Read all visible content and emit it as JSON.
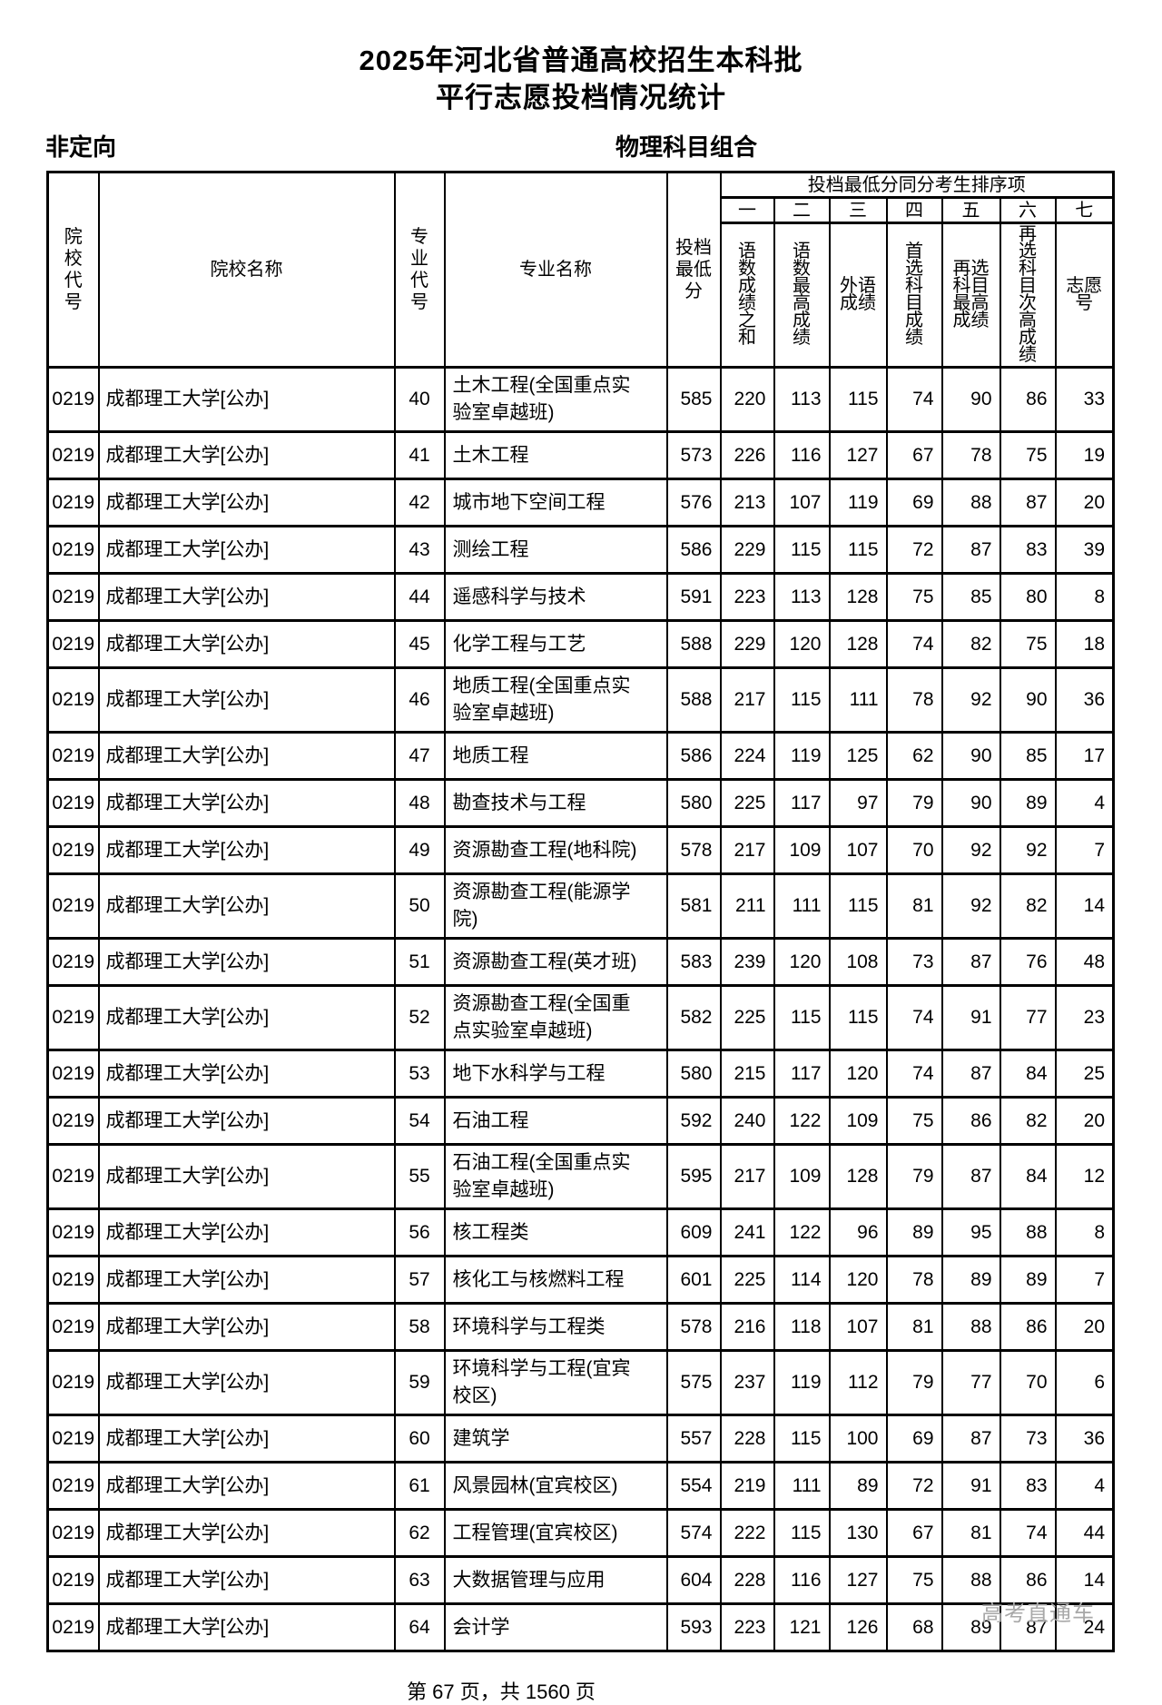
{
  "title": {
    "line1": "2025年河北省普通高校招生本科批",
    "line2": "平行志愿投档情况统计"
  },
  "labels": {
    "left": "非定向",
    "right": "物理科目组合"
  },
  "table": {
    "columns": {
      "school_code": "院校代号",
      "school_name": "院校名称",
      "major_code": "专业代号",
      "major_name": "专业名称",
      "min_score": "投档最低分",
      "tiebreak_group": "投档最低分同分考生排序项",
      "tiebreak_order": [
        "一",
        "二",
        "三",
        "四",
        "五",
        "六",
        "七"
      ],
      "tiebreak_labels": [
        "语数成绩之和",
        "语数最高成绩",
        "外语成绩",
        "首选科目成绩",
        "再选科目最高成绩",
        "再选科目次高成绩",
        "志愿号"
      ]
    },
    "rows": [
      {
        "school_code": "0219",
        "school_name": "成都理工大学[公办]",
        "major_code": "40",
        "major_name": "土木工程(全国重点实验室卓越班)",
        "min_score": "585",
        "tiebreak": [
          "220",
          "113",
          "115",
          "74",
          "90",
          "86",
          "33"
        ]
      },
      {
        "school_code": "0219",
        "school_name": "成都理工大学[公办]",
        "major_code": "41",
        "major_name": "土木工程",
        "min_score": "573",
        "tiebreak": [
          "226",
          "116",
          "127",
          "67",
          "78",
          "75",
          "19"
        ]
      },
      {
        "school_code": "0219",
        "school_name": "成都理工大学[公办]",
        "major_code": "42",
        "major_name": "城市地下空间工程",
        "min_score": "576",
        "tiebreak": [
          "213",
          "107",
          "119",
          "69",
          "88",
          "87",
          "20"
        ]
      },
      {
        "school_code": "0219",
        "school_name": "成都理工大学[公办]",
        "major_code": "43",
        "major_name": "测绘工程",
        "min_score": "586",
        "tiebreak": [
          "229",
          "115",
          "115",
          "72",
          "87",
          "83",
          "39"
        ]
      },
      {
        "school_code": "0219",
        "school_name": "成都理工大学[公办]",
        "major_code": "44",
        "major_name": "遥感科学与技术",
        "min_score": "591",
        "tiebreak": [
          "223",
          "113",
          "128",
          "75",
          "85",
          "80",
          "8"
        ]
      },
      {
        "school_code": "0219",
        "school_name": "成都理工大学[公办]",
        "major_code": "45",
        "major_name": "化学工程与工艺",
        "min_score": "588",
        "tiebreak": [
          "229",
          "120",
          "128",
          "74",
          "82",
          "75",
          "18"
        ]
      },
      {
        "school_code": "0219",
        "school_name": "成都理工大学[公办]",
        "major_code": "46",
        "major_name": "地质工程(全国重点实验室卓越班)",
        "min_score": "588",
        "tiebreak": [
          "217",
          "115",
          "111",
          "78",
          "92",
          "90",
          "36"
        ]
      },
      {
        "school_code": "0219",
        "school_name": "成都理工大学[公办]",
        "major_code": "47",
        "major_name": "地质工程",
        "min_score": "586",
        "tiebreak": [
          "224",
          "119",
          "125",
          "62",
          "90",
          "85",
          "17"
        ]
      },
      {
        "school_code": "0219",
        "school_name": "成都理工大学[公办]",
        "major_code": "48",
        "major_name": "勘查技术与工程",
        "min_score": "580",
        "tiebreak": [
          "225",
          "117",
          "97",
          "79",
          "90",
          "89",
          "4"
        ]
      },
      {
        "school_code": "0219",
        "school_name": "成都理工大学[公办]",
        "major_code": "49",
        "major_name": "资源勘查工程(地科院)",
        "min_score": "578",
        "tiebreak": [
          "217",
          "109",
          "107",
          "70",
          "92",
          "92",
          "7"
        ]
      },
      {
        "school_code": "0219",
        "school_name": "成都理工大学[公办]",
        "major_code": "50",
        "major_name": "资源勘查工程(能源学院)",
        "min_score": "581",
        "tiebreak": [
          "211",
          "111",
          "115",
          "81",
          "92",
          "82",
          "14"
        ]
      },
      {
        "school_code": "0219",
        "school_name": "成都理工大学[公办]",
        "major_code": "51",
        "major_name": "资源勘查工程(英才班)",
        "min_score": "583",
        "tiebreak": [
          "239",
          "120",
          "108",
          "73",
          "87",
          "76",
          "48"
        ]
      },
      {
        "school_code": "0219",
        "school_name": "成都理工大学[公办]",
        "major_code": "52",
        "major_name": "资源勘查工程(全国重点实验室卓越班)",
        "min_score": "582",
        "tiebreak": [
          "225",
          "115",
          "115",
          "74",
          "91",
          "77",
          "23"
        ]
      },
      {
        "school_code": "0219",
        "school_name": "成都理工大学[公办]",
        "major_code": "53",
        "major_name": "地下水科学与工程",
        "min_score": "580",
        "tiebreak": [
          "215",
          "117",
          "120",
          "74",
          "87",
          "84",
          "25"
        ]
      },
      {
        "school_code": "0219",
        "school_name": "成都理工大学[公办]",
        "major_code": "54",
        "major_name": "石油工程",
        "min_score": "592",
        "tiebreak": [
          "240",
          "122",
          "109",
          "75",
          "86",
          "82",
          "20"
        ]
      },
      {
        "school_code": "0219",
        "school_name": "成都理工大学[公办]",
        "major_code": "55",
        "major_name": "石油工程(全国重点实验室卓越班)",
        "min_score": "595",
        "tiebreak": [
          "217",
          "109",
          "128",
          "79",
          "87",
          "84",
          "12"
        ]
      },
      {
        "school_code": "0219",
        "school_name": "成都理工大学[公办]",
        "major_code": "56",
        "major_name": "核工程类",
        "min_score": "609",
        "tiebreak": [
          "241",
          "122",
          "96",
          "89",
          "95",
          "88",
          "8"
        ]
      },
      {
        "school_code": "0219",
        "school_name": "成都理工大学[公办]",
        "major_code": "57",
        "major_name": "核化工与核燃料工程",
        "min_score": "601",
        "tiebreak": [
          "225",
          "114",
          "120",
          "78",
          "89",
          "89",
          "7"
        ]
      },
      {
        "school_code": "0219",
        "school_name": "成都理工大学[公办]",
        "major_code": "58",
        "major_name": "环境科学与工程类",
        "min_score": "578",
        "tiebreak": [
          "216",
          "118",
          "107",
          "81",
          "88",
          "86",
          "20"
        ]
      },
      {
        "school_code": "0219",
        "school_name": "成都理工大学[公办]",
        "major_code": "59",
        "major_name": "环境科学与工程(宜宾校区)",
        "min_score": "575",
        "tiebreak": [
          "237",
          "119",
          "112",
          "79",
          "77",
          "70",
          "6"
        ]
      },
      {
        "school_code": "0219",
        "school_name": "成都理工大学[公办]",
        "major_code": "60",
        "major_name": "建筑学",
        "min_score": "557",
        "tiebreak": [
          "228",
          "115",
          "100",
          "69",
          "87",
          "73",
          "36"
        ]
      },
      {
        "school_code": "0219",
        "school_name": "成都理工大学[公办]",
        "major_code": "61",
        "major_name": "风景园林(宜宾校区)",
        "min_score": "554",
        "tiebreak": [
          "219",
          "111",
          "89",
          "72",
          "91",
          "83",
          "4"
        ]
      },
      {
        "school_code": "0219",
        "school_name": "成都理工大学[公办]",
        "major_code": "62",
        "major_name": "工程管理(宜宾校区)",
        "min_score": "574",
        "tiebreak": [
          "222",
          "115",
          "130",
          "67",
          "81",
          "74",
          "44"
        ]
      },
      {
        "school_code": "0219",
        "school_name": "成都理工大学[公办]",
        "major_code": "63",
        "major_name": "大数据管理与应用",
        "min_score": "604",
        "tiebreak": [
          "228",
          "116",
          "127",
          "75",
          "88",
          "86",
          "14"
        ]
      },
      {
        "school_code": "0219",
        "school_name": "成都理工大学[公办]",
        "major_code": "64",
        "major_name": "会计学",
        "min_score": "593",
        "tiebreak": [
          "223",
          "121",
          "126",
          "68",
          "89",
          "87",
          "24"
        ]
      }
    ]
  },
  "footer": {
    "page_info": "第 67 页，共 1560 页",
    "watermark": "高考直通车"
  }
}
